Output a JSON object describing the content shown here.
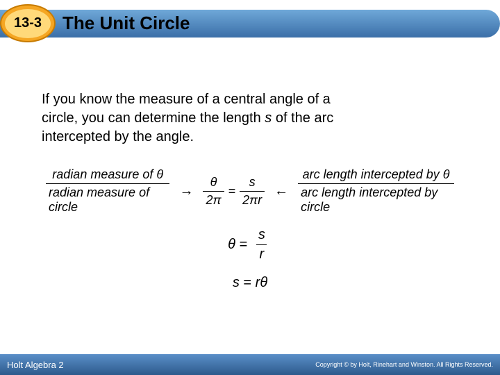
{
  "header": {
    "badge_text": "13-3",
    "title": "The Unit Circle"
  },
  "intro": {
    "line1": "If you know the measure of a central angle of a",
    "line2a": "circle, you can determine the length ",
    "line2b": "s",
    "line2c": " of the arc",
    "line3": "intercepted by the angle."
  },
  "formula": {
    "left_num": "radian measure of θ",
    "left_den": "radian measure of circle",
    "mid_num1": "θ",
    "mid_den1": "2π",
    "mid_num2": "s",
    "mid_den2": "2πr",
    "right_num": "arc length intercepted by θ",
    "right_den": "arc length intercepted by circle",
    "arrow_right": "→",
    "arrow_left": "←",
    "equals": "="
  },
  "eq2": {
    "lhs": "θ",
    "rhs_num": "s",
    "rhs_den": "r",
    "eq": "="
  },
  "eq3": {
    "text_lhs": "s",
    "text_eq": "=",
    "text_r": "r",
    "text_theta": "θ"
  },
  "footer": {
    "left": "Holt Algebra 2",
    "right": "Copyright © by Holt, Rinehart and Winston. All Rights Reserved."
  },
  "colors": {
    "header_grad_top": "#6fa8d8",
    "header_grad_bot": "#3b6fa8",
    "badge_outer": "#f5a623",
    "badge_inner": "#ffd97a",
    "footer_grad_top": "#5a8fc8",
    "footer_grad_bot": "#2d5a8c"
  }
}
